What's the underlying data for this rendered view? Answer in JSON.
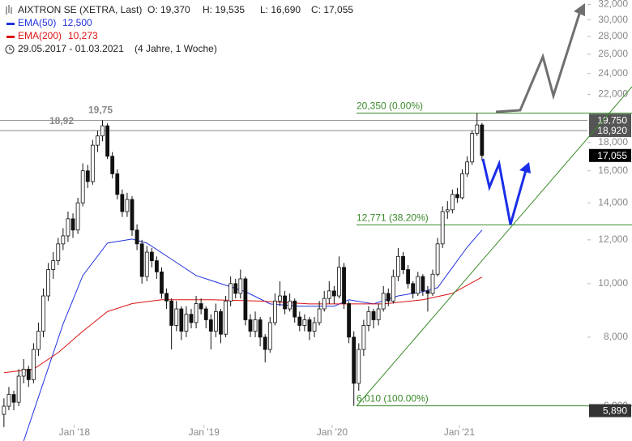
{
  "chart_data": {
    "type": "candlestick",
    "title": "AIXTRON SE (XETRA, Last)",
    "ohlc_labels": [
      "O: 19,370",
      "H: 19,535",
      "L: 16,690",
      "C: 17,055"
    ],
    "period": "29.05.2017 - 01.03.2021",
    "period_note": "(4 Jahre, 1 Woche)",
    "log_scale": true,
    "ylim": [
      5.19,
      32.6
    ],
    "yticks": [
      {
        "value": 6,
        "label": "6,000"
      },
      {
        "value": 8,
        "label": "8,000"
      },
      {
        "value": 10,
        "label": "10,000"
      },
      {
        "value": 12,
        "label": "12,000"
      },
      {
        "value": 14,
        "label": "14,000"
      },
      {
        "value": 16,
        "label": "16,000"
      },
      {
        "value": 18,
        "label": "18,000"
      },
      {
        "value": 22,
        "label": "22,000"
      },
      {
        "value": 24,
        "label": "24,000"
      },
      {
        "value": 26,
        "label": "26,000"
      },
      {
        "value": 28,
        "label": "28,000"
      },
      {
        "value": 30,
        "label": "30,000"
      },
      {
        "value": 32,
        "label": "32,000"
      }
    ],
    "xlim": [
      -0.8,
      118.4
    ],
    "xticks": [
      {
        "value": 14.3,
        "label": "Jan '18"
      },
      {
        "value": 40.6,
        "label": "Jan '19"
      },
      {
        "value": 66.6,
        "label": "Jan '20"
      },
      {
        "value": 92.4,
        "label": "Jan '21"
      }
    ],
    "candles": [
      [
        5.8,
        6.2,
        5.5,
        6.0
      ],
      [
        6.0,
        6.5,
        5.9,
        6.3
      ],
      [
        6.3,
        6.4,
        5.9,
        6.1
      ],
      [
        6.1,
        7.0,
        6.0,
        6.8
      ],
      [
        6.8,
        7.3,
        6.6,
        7.0
      ],
      [
        7.0,
        7.1,
        6.5,
        6.7
      ],
      [
        6.7,
        7.8,
        6.6,
        7.6
      ],
      [
        7.6,
        8.5,
        7.4,
        8.2
      ],
      [
        8.2,
        9.8,
        8.0,
        9.5
      ],
      [
        9.5,
        10.9,
        9.3,
        10.6
      ],
      [
        10.6,
        11.4,
        10.2,
        11.0
      ],
      [
        11.0,
        12.1,
        10.8,
        11.8
      ],
      [
        11.8,
        12.6,
        11.5,
        12.2
      ],
      [
        12.2,
        13.5,
        11.9,
        13.1
      ],
      [
        13.1,
        13.4,
        12.1,
        12.5
      ],
      [
        12.5,
        14.3,
        12.3,
        14.0
      ],
      [
        14.0,
        16.5,
        13.8,
        16.0
      ],
      [
        16.0,
        16.4,
        14.9,
        15.3
      ],
      [
        15.3,
        18.2,
        15.1,
        17.8
      ],
      [
        17.8,
        18.92,
        17.3,
        18.5
      ],
      [
        18.5,
        19.75,
        18.1,
        19.3
      ],
      [
        19.3,
        19.5,
        16.8,
        17.0
      ],
      [
        17.0,
        17.3,
        15.5,
        15.8
      ],
      [
        15.8,
        16.1,
        14.2,
        14.5
      ],
      [
        14.5,
        14.8,
        13.2,
        13.5
      ],
      [
        13.5,
        14.6,
        13.2,
        14.2
      ],
      [
        14.2,
        14.4,
        12.2,
        12.5
      ],
      [
        12.5,
        12.8,
        11.5,
        11.8
      ],
      [
        11.8,
        12.0,
        10.0,
        10.3
      ],
      [
        10.3,
        11.7,
        10.1,
        11.4
      ],
      [
        11.4,
        11.6,
        10.7,
        11.0
      ],
      [
        11.0,
        11.2,
        10.2,
        10.5
      ],
      [
        10.5,
        10.7,
        9.4,
        9.6
      ],
      [
        9.6,
        9.8,
        9.0,
        9.3
      ],
      [
        9.3,
        9.4,
        7.6,
        8.4
      ],
      [
        8.4,
        9.3,
        8.2,
        9.0
      ],
      [
        9.0,
        9.1,
        7.9,
        8.2
      ],
      [
        8.2,
        9.1,
        8.0,
        8.8
      ],
      [
        8.8,
        9.0,
        8.3,
        8.5
      ],
      [
        8.5,
        9.5,
        8.3,
        9.2
      ],
      [
        9.2,
        9.4,
        8.8,
        9.0
      ],
      [
        9.0,
        9.1,
        8.3,
        8.6
      ],
      [
        8.6,
        8.8,
        7.6,
        8.2
      ],
      [
        8.2,
        9.2,
        8.0,
        8.9
      ],
      [
        8.9,
        9.0,
        7.8,
        8.1
      ],
      [
        8.1,
        9.5,
        8.0,
        9.3
      ],
      [
        9.3,
        10.3,
        9.1,
        10.0
      ],
      [
        10.0,
        10.2,
        9.4,
        9.6
      ],
      [
        9.6,
        10.6,
        9.4,
        10.2
      ],
      [
        10.2,
        10.3,
        8.4,
        8.6
      ],
      [
        8.6,
        8.8,
        8.0,
        8.2
      ],
      [
        8.2,
        8.9,
        8.0,
        8.6
      ],
      [
        8.6,
        8.7,
        7.7,
        8.0
      ],
      [
        8.0,
        8.1,
        7.2,
        7.6
      ],
      [
        7.6,
        8.7,
        7.5,
        8.5
      ],
      [
        8.5,
        9.6,
        8.4,
        9.3
      ],
      [
        9.3,
        10.1,
        9.1,
        9.5
      ],
      [
        9.5,
        9.7,
        8.8,
        9.0
      ],
      [
        9.0,
        9.6,
        8.9,
        9.3
      ],
      [
        9.3,
        9.4,
        8.5,
        8.7
      ],
      [
        8.7,
        8.9,
        8.2,
        8.4
      ],
      [
        8.4,
        8.8,
        8.2,
        8.6
      ],
      [
        8.6,
        8.7,
        7.9,
        8.2
      ],
      [
        8.2,
        8.7,
        8.0,
        8.5
      ],
      [
        8.5,
        9.3,
        8.4,
        9.0
      ],
      [
        9.0,
        9.7,
        8.9,
        9.4
      ],
      [
        9.4,
        10.1,
        9.2,
        9.7
      ],
      [
        9.7,
        9.9,
        9.2,
        9.5
      ],
      [
        9.5,
        11.2,
        9.4,
        10.7
      ],
      [
        10.7,
        10.9,
        9.0,
        9.2
      ],
      [
        9.2,
        9.3,
        7.8,
        8.0
      ],
      [
        8.0,
        8.2,
        6.01,
        6.6
      ],
      [
        6.6,
        7.8,
        6.4,
        7.6
      ],
      [
        7.6,
        8.6,
        7.4,
        8.4
      ],
      [
        8.4,
        9.1,
        8.2,
        8.9
      ],
      [
        8.9,
        9.0,
        8.3,
        8.6
      ],
      [
        8.6,
        9.2,
        8.4,
        9.0
      ],
      [
        9.0,
        9.9,
        8.9,
        9.6
      ],
      [
        9.6,
        9.8,
        9.1,
        9.3
      ],
      [
        9.3,
        10.6,
        9.2,
        10.3
      ],
      [
        10.3,
        11.6,
        10.1,
        11.2
      ],
      [
        11.2,
        11.4,
        10.4,
        10.6
      ],
      [
        10.6,
        10.8,
        9.8,
        10.0
      ],
      [
        10.0,
        10.1,
        9.4,
        9.6
      ],
      [
        9.6,
        10.5,
        9.5,
        10.3
      ],
      [
        10.3,
        10.4,
        9.5,
        9.7
      ],
      [
        9.7,
        9.9,
        8.9,
        9.6
      ],
      [
        9.6,
        10.6,
        9.5,
        10.4
      ],
      [
        10.4,
        12.1,
        10.3,
        11.8
      ],
      [
        11.8,
        13.8,
        11.6,
        13.5
      ],
      [
        13.5,
        14.1,
        13.1,
        13.6
      ],
      [
        13.6,
        14.8,
        13.4,
        14.5
      ],
      [
        14.5,
        14.9,
        14.0,
        14.3
      ],
      [
        14.3,
        16.1,
        14.2,
        15.8
      ],
      [
        15.8,
        17.0,
        15.6,
        16.6
      ],
      [
        16.6,
        18.9,
        16.4,
        18.7
      ],
      [
        18.7,
        20.35,
        18.5,
        19.37
      ],
      [
        19.37,
        19.535,
        16.69,
        17.055
      ]
    ],
    "candle_color": "#111111",
    "series": [
      {
        "name": "EMA(50)",
        "value_label": "12,500",
        "color": "#2233dd",
        "x": [
          4,
          12,
          16,
          21,
          26,
          29,
          34,
          39,
          44,
          49,
          54,
          60,
          67,
          70,
          75,
          80,
          85,
          88,
          91,
          94,
          97
        ],
        "values": [
          5.19,
          8.45,
          10.34,
          11.84,
          12.04,
          11.84,
          11.07,
          10.34,
          10.0,
          9.67,
          9.19,
          9.1,
          9.1,
          9.35,
          9.19,
          9.5,
          9.67,
          9.83,
          10.7,
          11.64,
          12.5
        ]
      },
      {
        "name": "EMA(200)",
        "value_label": "10,273",
        "color": "#dd1111",
        "x": [
          0,
          6,
          11,
          16,
          21,
          26,
          32,
          42,
          52,
          62,
          68,
          77,
          85,
          91,
          97
        ],
        "values": [
          6.9,
          7.0,
          7.5,
          8.2,
          8.9,
          9.2,
          9.35,
          9.35,
          9.3,
          9.19,
          9.19,
          9.19,
          9.35,
          9.6,
          10.273
        ]
      }
    ],
    "hlines": [
      {
        "value": 19.75,
        "label": "19,75"
      },
      {
        "value": 18.92,
        "label": "18,92"
      }
    ],
    "fib_levels": [
      {
        "value": 20.35,
        "label": "20,350 (0.00%)"
      },
      {
        "value": 12.771,
        "label": "12,771 (38.20%)"
      },
      {
        "value": 6.01,
        "label": "6,010 (100.00%)"
      }
    ],
    "fib_color": "#3a8a2a",
    "price_labels": [
      {
        "value": 19.75,
        "label": "19,750",
        "color": "#555555"
      },
      {
        "value": 18.92,
        "label": "18,920",
        "color": "#555555"
      },
      {
        "value": 17.055,
        "label": "17,055",
        "color": "#000000"
      },
      {
        "value": 5.89,
        "label": "5,890",
        "color": "#333333"
      }
    ]
  }
}
